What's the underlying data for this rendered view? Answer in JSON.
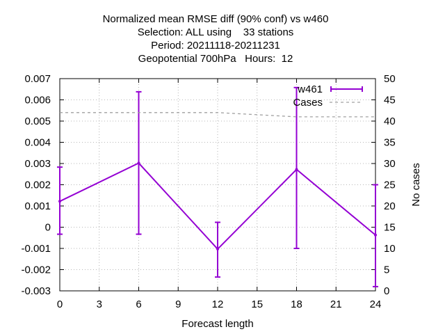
{
  "chart_data": {
    "type": "line",
    "title_lines": [
      "Normalized mean RMSE diff (90% conf) vs w460",
      "Selection: ALL using    33 stations",
      "Period: 20211118-20211231",
      "Geopotential 700hPa   Hours:  12"
    ],
    "xlabel": "Forecast length",
    "ylabel": "",
    "y2label": "No cases",
    "xlim": [
      0,
      24
    ],
    "ylim": [
      -0.003,
      0.007
    ],
    "y2lim": [
      0,
      50
    ],
    "xticks": [
      0,
      3,
      6,
      9,
      12,
      15,
      18,
      21,
      24
    ],
    "yticks": [
      -0.003,
      -0.002,
      -0.001,
      0,
      0.001,
      0.002,
      0.003,
      0.004,
      0.005,
      0.006,
      0.007
    ],
    "ytick_labels": [
      "-0.003",
      "-0.002",
      "-0.001",
      "0",
      "0.001",
      "0.002",
      "0.003",
      "0.004",
      "0.005",
      "0.006",
      "0.007"
    ],
    "y2ticks": [
      0,
      5,
      10,
      15,
      20,
      25,
      30,
      35,
      40,
      45,
      50
    ],
    "grid": true,
    "legend_position": "top-right",
    "series": [
      {
        "name": "w461",
        "color": "#9400d3",
        "axis": "y",
        "style": "line-errorbars",
        "x": [
          0,
          6,
          12,
          18,
          24
        ],
        "y": [
          0.00122,
          0.00302,
          -0.00103,
          0.00272,
          -0.00037
        ],
        "err_low": [
          -0.00033,
          -0.00033,
          -0.00235,
          -0.001,
          -0.0028
        ],
        "err_high": [
          0.00283,
          0.00638,
          0.00023,
          0.00658,
          0.002
        ]
      },
      {
        "name": "Cases",
        "color": "#a0a0a0",
        "axis": "y2",
        "style": "dashed",
        "x": [
          0,
          6,
          12,
          18,
          24
        ],
        "y": [
          42,
          42,
          42,
          41,
          41
        ]
      }
    ]
  }
}
